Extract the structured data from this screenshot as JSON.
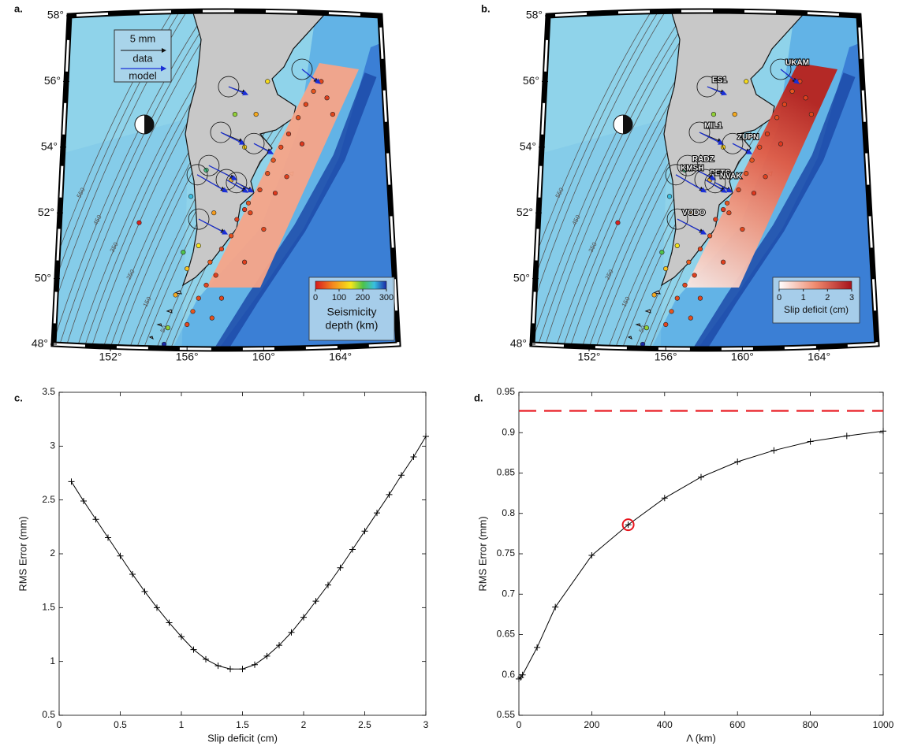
{
  "chart_data": [
    {
      "type": "map",
      "panel_label": "a.",
      "lat_ticks": [
        {
          "value": 48,
          "label": "48°"
        },
        {
          "value": 50,
          "label": "50°"
        },
        {
          "value": 52,
          "label": "52°"
        },
        {
          "value": 54,
          "label": "54°"
        },
        {
          "value": 56,
          "label": "56°"
        },
        {
          "value": 58,
          "label": "58°"
        }
      ],
      "lon_ticks": [
        {
          "value": 152,
          "label": "152°"
        },
        {
          "value": 156,
          "label": "156°"
        },
        {
          "value": 160,
          "label": "160°"
        },
        {
          "value": 164,
          "label": "164°"
        }
      ],
      "contour_labels": [
        550,
        450,
        350,
        250,
        150,
        50
      ],
      "seismicity": {
        "lon": [
          156.0,
          156.3,
          156.6,
          157.0,
          157.5,
          157.2,
          157.8,
          158.3,
          158.6,
          159.0,
          159.3,
          159.2,
          159.8,
          160.2,
          160.5,
          160.9,
          161.3,
          161.8,
          162.2,
          162.6,
          163.0,
          163.3,
          163.6,
          160.6,
          160.0,
          159.0,
          157.8,
          157.3,
          162.0,
          161.2,
          155.4,
          156.0,
          156.6,
          157.4,
          158.3,
          159.0,
          159.6,
          160.2,
          155.0,
          155.8,
          157.0,
          158.5,
          156.2,
          153.5,
          154.8
        ],
        "lat": [
          48.6,
          49.0,
          49.4,
          49.8,
          50.1,
          50.5,
          50.9,
          51.3,
          51.8,
          52.1,
          52.0,
          52.3,
          52.7,
          53.2,
          53.6,
          54.0,
          54.4,
          54.9,
          55.3,
          55.7,
          56.0,
          55.5,
          55.0,
          52.6,
          51.5,
          50.5,
          49.4,
          48.8,
          54.1,
          53.1,
          49.5,
          50.3,
          51.0,
          52.0,
          53.0,
          54.0,
          55.0,
          56.0,
          48.5,
          50.8,
          53.3,
          55.0,
          52.5,
          51.7,
          48.0
        ],
        "depth": [
          30,
          40,
          35,
          30,
          25,
          45,
          30,
          35,
          25,
          20,
          30,
          40,
          30,
          35,
          40,
          30,
          25,
          35,
          30,
          40,
          30,
          25,
          30,
          20,
          30,
          25,
          30,
          35,
          20,
          25,
          100,
          120,
          150,
          90,
          110,
          130,
          100,
          140,
          180,
          200,
          220,
          180,
          250,
          5,
          300
        ]
      },
      "legend": {
        "scale_label": "5 mm",
        "data_label": "data",
        "model_label": "model"
      },
      "colorbar": {
        "clim": [
          0,
          300
        ],
        "ticks": [
          0,
          100,
          200,
          300
        ],
        "title": [
          "Seismicity",
          "depth (km)"
        ]
      }
    },
    {
      "type": "map",
      "panel_label": "b.",
      "lat_ticks": [
        {
          "value": 48,
          "label": "48°"
        },
        {
          "value": 50,
          "label": "50°"
        },
        {
          "value": 52,
          "label": "52°"
        },
        {
          "value": 54,
          "label": "54°"
        },
        {
          "value": 56,
          "label": "56°"
        },
        {
          "value": 58,
          "label": "58°"
        }
      ],
      "lon_ticks": [
        {
          "value": 152,
          "label": "152°"
        },
        {
          "value": 156,
          "label": "156°"
        },
        {
          "value": 160,
          "label": "160°"
        },
        {
          "value": 164,
          "label": "164°"
        }
      ],
      "contour_labels": [
        550,
        450,
        350,
        250,
        150,
        50
      ],
      "stations": {
        "name": [
          "UKAM",
          "ES1",
          "MIL1",
          "ZUPN",
          "RADZ",
          "PETS",
          "KMSH",
          "NVAK",
          "VODO"
        ],
        "lon": [
          162.0,
          158.17,
          157.76,
          159.49,
          157.14,
          158.05,
          156.53,
          158.58,
          156.61
        ],
        "lat": [
          56.37,
          55.84,
          54.45,
          54.11,
          53.44,
          53.01,
          53.16,
          52.92,
          51.81
        ],
        "data_e": [
          2.0,
          2.2,
          2.8,
          2.2,
          3.2,
          2.5,
          3.5,
          2.0,
          3.3
        ],
        "data_n": [
          -1.6,
          -0.8,
          -1.2,
          -1.1,
          -1.6,
          -1.4,
          -2.0,
          -1.0,
          -1.7
        ],
        "model_e": [
          2.3,
          2.4,
          3.0,
          2.4,
          3.5,
          2.7,
          3.8,
          2.1,
          3.6
        ],
        "model_n": [
          -1.8,
          -1.0,
          -1.5,
          -1.3,
          -1.8,
          -1.6,
          -2.2,
          -1.2,
          -1.9
        ]
      },
      "colorbar": {
        "clim": [
          0,
          3
        ],
        "ticks": [
          0,
          1,
          2,
          3
        ],
        "title": [
          "Slip deficit (cm)"
        ]
      }
    },
    {
      "type": "line",
      "panel_label": "c.",
      "xlabel": "Slip deficit (cm)",
      "ylabel": "RMS Error (mm)",
      "x": [
        0.1,
        0.2,
        0.3,
        0.4,
        0.5,
        0.6,
        0.7,
        0.8,
        0.9,
        1.0,
        1.1,
        1.2,
        1.3,
        1.4,
        1.5,
        1.6,
        1.7,
        1.8,
        1.9,
        2.0,
        2.1,
        2.2,
        2.3,
        2.4,
        2.5,
        2.6,
        2.7,
        2.8,
        2.9,
        3.0
      ],
      "series": [
        {
          "color": "#000000",
          "values": [
            2.67,
            2.49,
            2.32,
            2.15,
            1.98,
            1.81,
            1.65,
            1.5,
            1.36,
            1.23,
            1.11,
            1.02,
            0.96,
            0.93,
            0.93,
            0.97,
            1.05,
            1.15,
            1.27,
            1.41,
            1.56,
            1.71,
            1.87,
            2.04,
            2.21,
            2.38,
            2.55,
            2.73,
            2.9,
            3.09
          ]
        }
      ],
      "xlim": [
        0,
        3
      ],
      "xticks": [
        0,
        0.5,
        1,
        1.5,
        2,
        2.5,
        3
      ],
      "ylim": [
        0.5,
        3.5
      ],
      "yticks": [
        0.5,
        1,
        1.5,
        2,
        2.5,
        3,
        3.5
      ]
    },
    {
      "type": "line",
      "panel_label": "d.",
      "xlabel": "Λ (km)",
      "ylabel": "RMS Error (mm)",
      "x": [
        0,
        5,
        10,
        50,
        100,
        200,
        300,
        400,
        500,
        600,
        700,
        800,
        900,
        1000
      ],
      "series": [
        {
          "color": "#000000",
          "values": [
            0.595,
            0.597,
            0.6,
            0.634,
            0.684,
            0.748,
            0.786,
            0.819,
            0.845,
            0.864,
            0.878,
            0.889,
            0.896,
            0.902
          ]
        }
      ],
      "xlim": [
        0,
        1000
      ],
      "xticks": [
        0,
        200,
        400,
        600,
        800,
        1000
      ],
      "ylim": [
        0.55,
        0.95
      ],
      "yticks": [
        0.55,
        0.6,
        0.65,
        0.7,
        0.75,
        0.8,
        0.85,
        0.9,
        0.95
      ],
      "hline": {
        "value": 0.927,
        "color": "#e8141c"
      },
      "highlight": {
        "x": 300,
        "y": 0.786,
        "color": "#e8141c"
      }
    }
  ]
}
